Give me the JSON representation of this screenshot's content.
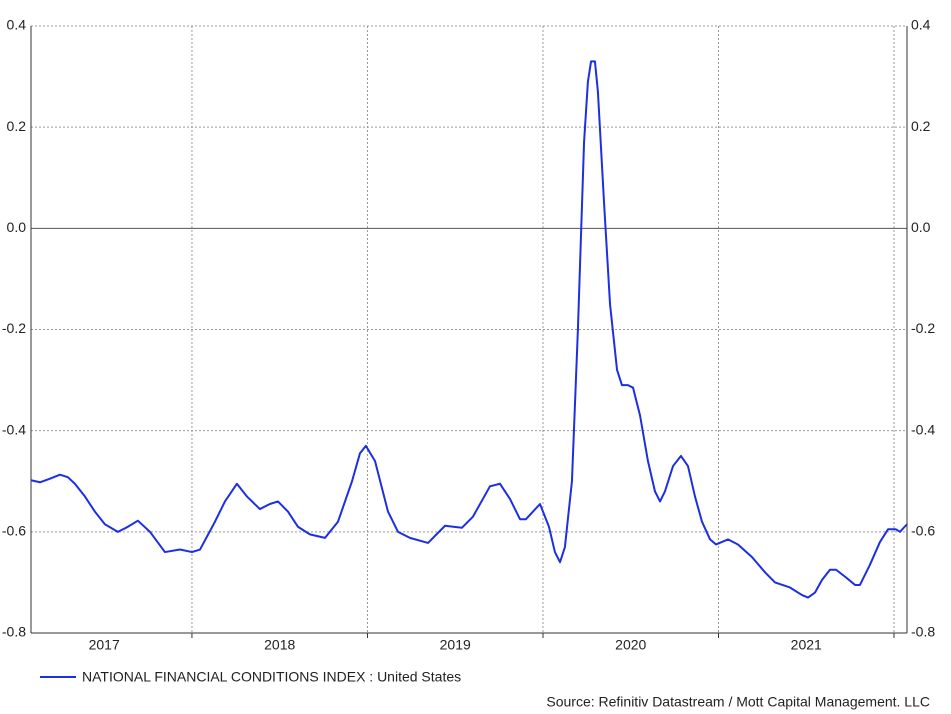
{
  "chart_data": {
    "type": "line",
    "source": "Source: Refinitiv Datastream / Mott Capital Management. LLC",
    "xlim": [
      2017.083,
      2022.074
    ],
    "xticks": [
      {
        "value": 2017.5,
        "label": "2017"
      },
      {
        "value": 2018.5,
        "label": "2018"
      },
      {
        "value": 2019.5,
        "label": "2019"
      },
      {
        "value": 2020.5,
        "label": "2020"
      },
      {
        "value": 2021.5,
        "label": "2021"
      }
    ],
    "xgrid": [
      2018,
      2019,
      2020,
      2021,
      2022
    ],
    "ylim": [
      -0.8,
      0.4
    ],
    "yticks": [
      -0.8,
      -0.6,
      -0.4,
      -0.2,
      {
        "value": 0,
        "label": "0.0"
      },
      0.2,
      0.4
    ],
    "grid": true,
    "legend": "bottom-left",
    "series": [
      {
        "name": "NATIONAL FINANCIAL CONDITIONS INDEX : United States",
        "color": "#1c2fe3",
        "x": [
          2017.083,
          2017.134,
          2017.191,
          2017.248,
          2017.293,
          2017.333,
          2017.39,
          2017.447,
          2017.504,
          2017.578,
          2017.635,
          2017.692,
          2017.761,
          2017.846,
          2017.932,
          2018.0,
          2018.046,
          2018.131,
          2018.188,
          2018.256,
          2018.313,
          2018.387,
          2018.444,
          2018.49,
          2018.547,
          2018.604,
          2018.672,
          2018.758,
          2018.832,
          2018.912,
          2018.957,
          2018.991,
          2019.043,
          2019.117,
          2019.174,
          2019.242,
          2019.345,
          2019.442,
          2019.538,
          2019.601,
          2019.698,
          2019.755,
          2019.812,
          2019.869,
          2019.903,
          2019.983,
          2020.034,
          2020.068,
          2020.097,
          2020.125,
          2020.165,
          2020.199,
          2020.234,
          2020.256,
          2020.274,
          2020.296,
          2020.313,
          2020.348,
          2020.382,
          2020.422,
          2020.45,
          2020.484,
          2020.513,
          2020.553,
          2020.598,
          2020.638,
          2020.667,
          2020.695,
          2020.741,
          2020.786,
          2020.826,
          2020.866,
          2020.906,
          2020.952,
          2020.986,
          2021.054,
          2021.111,
          2021.191,
          2021.265,
          2021.322,
          2021.407,
          2021.476,
          2021.51,
          2021.55,
          2021.59,
          2021.635,
          2021.67,
          2021.726,
          2021.778,
          2021.806,
          2021.863,
          2021.92,
          2021.966,
          2022.011,
          2022.034,
          2022.074
        ],
        "values": [
          -0.498,
          -0.502,
          -0.495,
          -0.487,
          -0.492,
          -0.505,
          -0.53,
          -0.56,
          -0.585,
          -0.6,
          -0.59,
          -0.578,
          -0.6,
          -0.64,
          -0.635,
          -0.64,
          -0.635,
          -0.58,
          -0.54,
          -0.505,
          -0.53,
          -0.555,
          -0.545,
          -0.54,
          -0.56,
          -0.59,
          -0.605,
          -0.612,
          -0.58,
          -0.5,
          -0.445,
          -0.43,
          -0.46,
          -0.56,
          -0.6,
          -0.612,
          -0.622,
          -0.588,
          -0.592,
          -0.57,
          -0.51,
          -0.505,
          -0.535,
          -0.575,
          -0.575,
          -0.545,
          -0.59,
          -0.64,
          -0.66,
          -0.63,
          -0.5,
          -0.2,
          0.17,
          0.29,
          0.33,
          0.33,
          0.27,
          0.05,
          -0.15,
          -0.28,
          -0.31,
          -0.31,
          -0.315,
          -0.37,
          -0.46,
          -0.52,
          -0.54,
          -0.52,
          -0.47,
          -0.45,
          -0.47,
          -0.53,
          -0.58,
          -0.615,
          -0.625,
          -0.615,
          -0.625,
          -0.65,
          -0.68,
          -0.7,
          -0.71,
          -0.725,
          -0.73,
          -0.72,
          -0.695,
          -0.675,
          -0.675,
          -0.69,
          -0.705,
          -0.705,
          -0.665,
          -0.62,
          -0.595,
          -0.595,
          -0.6,
          -0.585
        ]
      }
    ]
  }
}
